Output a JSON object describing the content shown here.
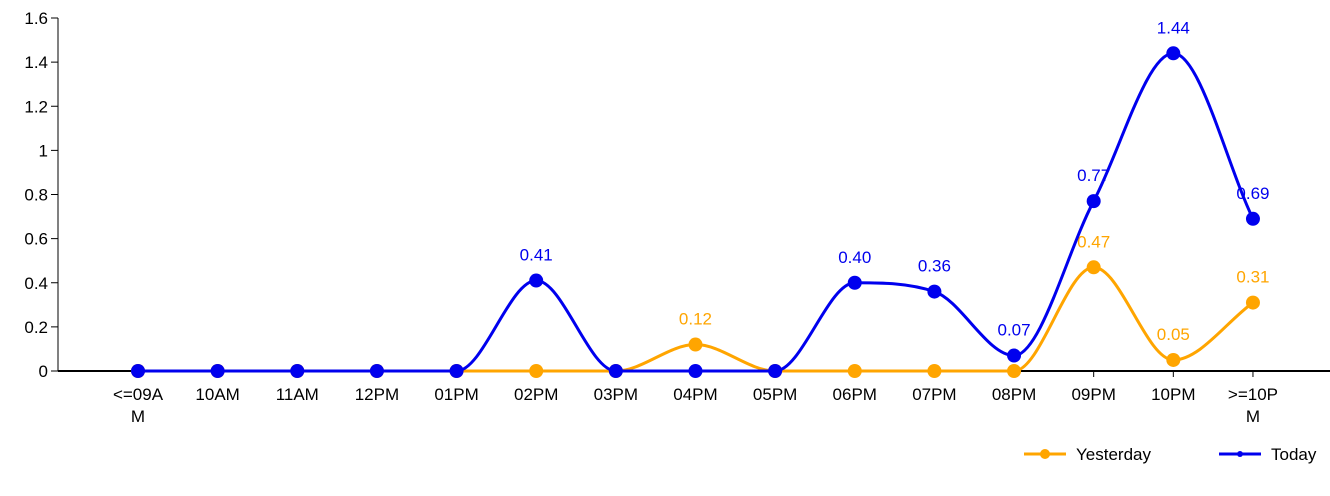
{
  "chart_data": {
    "type": "line",
    "title": "",
    "xlabel": "",
    "ylabel": "",
    "ylim": [
      0,
      1.6
    ],
    "yticks": [
      "0",
      "0.2",
      "0.4",
      "0.6",
      "0.8",
      "1",
      "1.2",
      "1.4",
      "1.6"
    ],
    "categories": [
      [
        "<=09A",
        "M"
      ],
      [
        "10AM"
      ],
      [
        "11AM"
      ],
      [
        "12PM"
      ],
      [
        "01PM"
      ],
      [
        "02PM"
      ],
      [
        "03PM"
      ],
      [
        "04PM"
      ],
      [
        "05PM"
      ],
      [
        "06PM"
      ],
      [
        "07PM"
      ],
      [
        "08PM"
      ],
      [
        "09PM"
      ],
      [
        "10PM"
      ],
      [
        ">=10P",
        "M"
      ]
    ],
    "series": [
      {
        "name": "Yesterday",
        "color": "#FFA500",
        "values": [
          0,
          0,
          0,
          0,
          0,
          0,
          0,
          0.12,
          0,
          0,
          0,
          0,
          0.47,
          0.05,
          0.31
        ],
        "labels": [
          "",
          "",
          "",
          "",
          "",
          "",
          "",
          "0.12",
          "",
          "",
          "",
          "",
          "0.47",
          "0.05",
          "0.31"
        ]
      },
      {
        "name": "Today",
        "color": "#0000EE",
        "values": [
          0,
          0,
          0,
          0,
          0,
          0.41,
          0,
          0,
          0,
          0.4,
          0.36,
          0.07,
          0.77,
          1.44,
          0.69
        ],
        "labels": [
          "",
          "",
          "",
          "",
          "",
          "0.41",
          "",
          "",
          "",
          "0.40",
          "0.36",
          "0.07",
          "0.77",
          "1.44",
          "0.69"
        ]
      }
    ],
    "legend_position": "bottom-right",
    "grid": false,
    "smooth": true
  }
}
